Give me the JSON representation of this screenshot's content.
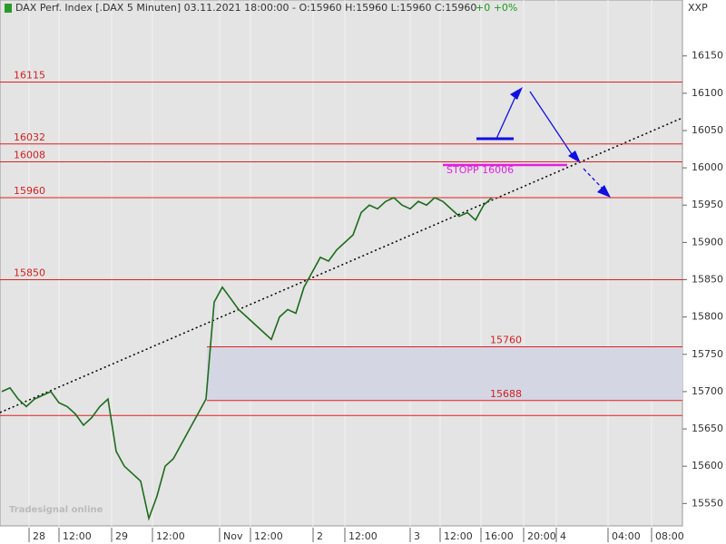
{
  "chart_data": {
    "type": "line",
    "title": "DAX Perf. Index [.DAX  5 Minuten] 03.11.2021 18:00:00 - O:15960 H:15960 L:15960 C:15960",
    "change": "+0 +0%",
    "currency": "XXP",
    "watermark": "Tradesignal online",
    "x_labels": [
      "28",
      "12:00",
      "29",
      "12:00",
      "Nov",
      "12:00",
      "2",
      "12:00",
      "3",
      "12:00",
      "16:00",
      "20:00",
      "4",
      "04:00",
      "08:00"
    ],
    "series": [
      {
        "name": "DAX",
        "color": "#1d6b1d",
        "values": [
          15700,
          15705,
          15690,
          15680,
          15690,
          15695,
          15700,
          15685,
          15680,
          15670,
          15655,
          15665,
          15680,
          15690,
          15620,
          15600,
          15590,
          15580,
          15530,
          15560,
          15600,
          15610,
          15630,
          15650,
          15670,
          15690,
          15820,
          15840,
          15825,
          15810,
          15800,
          15790,
          15780,
          15770,
          15800,
          15810,
          15805,
          15840,
          15860,
          15880,
          15875,
          15890,
          15900,
          15910,
          15940,
          15950,
          15945,
          15955,
          15960,
          15950,
          15945,
          15955,
          15950,
          15960,
          15955,
          15945,
          15935,
          15940,
          15930,
          15950,
          15960
        ]
      }
    ],
    "levels": [
      16115,
      16032,
      16008,
      15960,
      15850,
      15760,
      15688
    ],
    "unlabeled_levels": [
      15668
    ],
    "stop_label": "STOPP  16006",
    "ylim": [
      15520,
      16225
    ],
    "yticks": [
      15550,
      15600,
      15650,
      15700,
      15750,
      15800,
      15850,
      15900,
      15950,
      16000,
      16050,
      16100,
      16150
    ]
  }
}
